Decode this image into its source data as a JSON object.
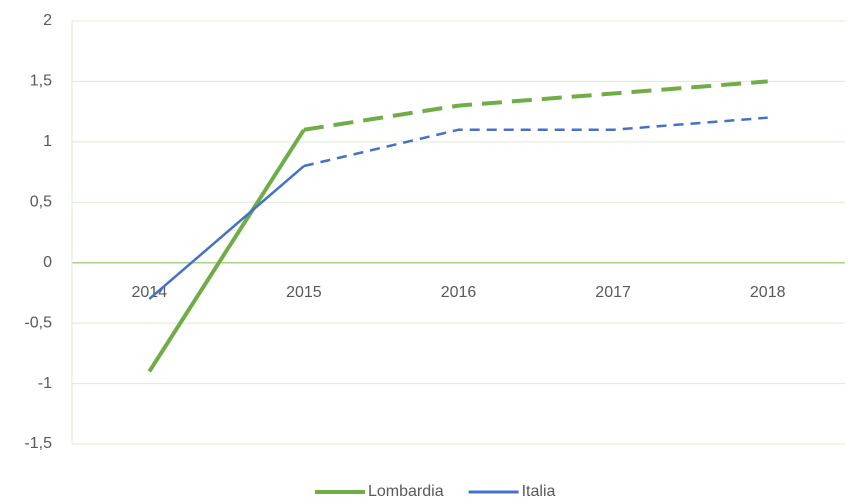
{
  "chart_data": {
    "type": "line",
    "categories": [
      "2014",
      "2015",
      "2016",
      "2017",
      "2018"
    ],
    "series": [
      {
        "name": "Lombardia",
        "color": "#70ad47",
        "values": [
          -0.9,
          1.1,
          1.3,
          1.4,
          1.5
        ]
      },
      {
        "name": "Italia",
        "color": "#4472c4",
        "values": [
          -0.3,
          0.8,
          1.1,
          1.1,
          1.2
        ]
      }
    ],
    "dashed_from": "2015",
    "ylim": [
      -1.5,
      2
    ],
    "yticks": [
      {
        "value": -1.5,
        "label": "-1,5"
      },
      -1,
      {
        "value": -0.5,
        "label": "-0,5"
      },
      0,
      {
        "value": 0.5,
        "label": "0,5"
      },
      1,
      {
        "value": 1.5,
        "label": "1,5"
      },
      2
    ],
    "grid": true,
    "legend": "bottom"
  }
}
